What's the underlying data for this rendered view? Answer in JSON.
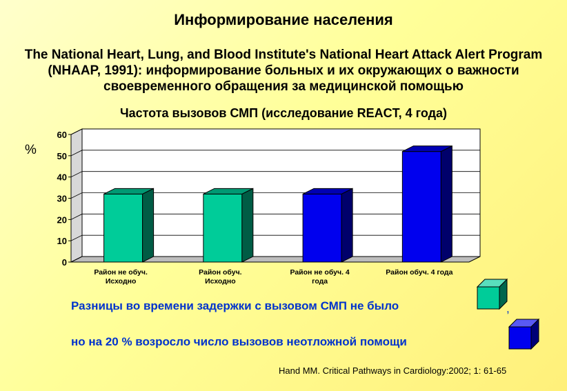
{
  "slide": {
    "title": "Информирование населения",
    "subtitle": "The National Heart, Lung, and Blood Institute's National Heart Attack Alert Program (NHAAP, 1991): информирование больных и их окружающих о важности своевременного обращения за медицинской помощью"
  },
  "notes": {
    "line1": "Разницы во времени задержки с вызовом СМП не было",
    "line1_suffix": ",",
    "line2": "но на 20 % возросло число вызовов неотложной помощи"
  },
  "citation": "Hand MM. Critical Pathways in Cardiology:2002; 1: 61-65",
  "colors": {
    "green": "#00cc99",
    "blue": "#0000ee"
  },
  "chart_data": {
    "type": "bar",
    "title": "Частота вызовов СМП (исследование REACT, 4 года)",
    "ylabel": "%",
    "xlabel": "",
    "ylim": [
      0,
      60
    ],
    "yticks": [
      0,
      10,
      20,
      30,
      40,
      50,
      60
    ],
    "grid": true,
    "three_d": true,
    "categories": [
      [
        "Район не обуч.",
        "Исходно"
      ],
      [
        "Район обуч.",
        "Исходно"
      ],
      [
        "Район не обуч. 4",
        "года"
      ],
      [
        "Район обуч. 4 года"
      ]
    ],
    "values": [
      32,
      32,
      32,
      52
    ],
    "bar_colors": [
      "green",
      "green",
      "blue",
      "blue"
    ]
  }
}
